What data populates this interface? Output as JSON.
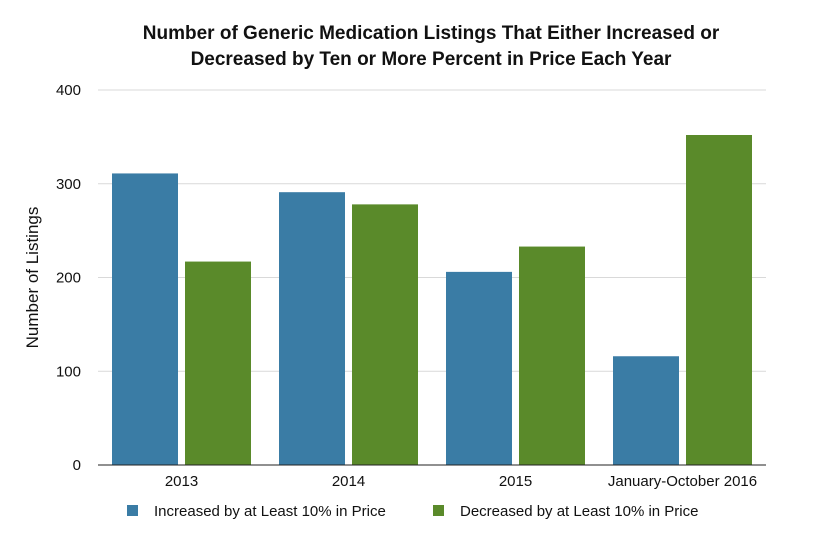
{
  "chart_data": {
    "type": "bar",
    "title_lines": [
      "Number of Generic Medication Listings That Either Increased or",
      "Decreased by Ten or More Percent in Price Each Year"
    ],
    "xlabel": "",
    "ylabel": "Number of Listings",
    "categories": [
      "2013",
      "2014",
      "2015",
      "January-October 2016"
    ],
    "series": [
      {
        "name": "Increased by at Least 10% in Price",
        "color": "#3a7ca5",
        "values": [
          311,
          291,
          206,
          116
        ]
      },
      {
        "name": "Decreased by at Least 10% in Price",
        "color": "#5a8a2a",
        "values": [
          217,
          278,
          233,
          352
        ]
      }
    ],
    "ylim": [
      0,
      400
    ],
    "yticks": [
      0,
      100,
      200,
      300,
      400
    ],
    "grid": true,
    "legend_position": "bottom"
  }
}
